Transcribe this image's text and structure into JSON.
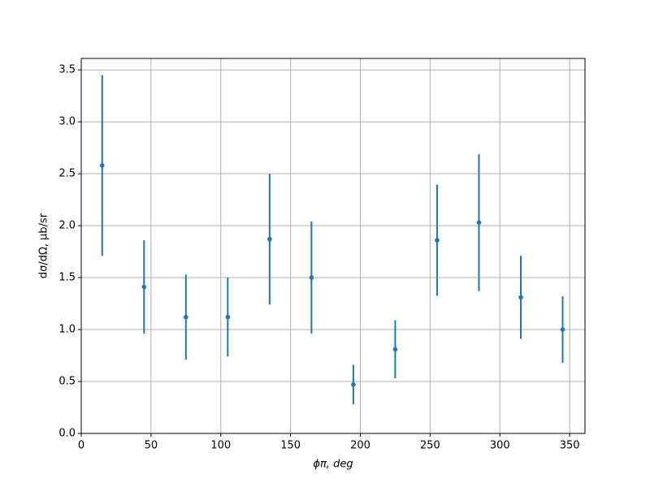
{
  "chart_data": {
    "type": "errorbar",
    "xlabel": "ϕπ, deg",
    "ylabel": "dσ/dΩ, μb/sr",
    "x": [
      15,
      45,
      75,
      105,
      135,
      165,
      195,
      225,
      255,
      285,
      315,
      345
    ],
    "series": [
      {
        "color": "#1f77b4",
        "values": [
          2.58,
          1.41,
          1.12,
          1.12,
          1.87,
          1.5,
          0.47,
          0.81,
          1.86,
          2.03,
          1.31,
          1.0
        ],
        "errors": [
          0.87,
          0.45,
          0.41,
          0.38,
          0.63,
          0.54,
          0.19,
          0.28,
          0.535,
          0.66,
          0.4,
          0.32
        ]
      }
    ],
    "xlim": [
      0,
      361
    ],
    "ylim": [
      0,
      3.61
    ],
    "xticks": [
      0,
      50,
      100,
      150,
      200,
      250,
      300,
      350
    ],
    "yticks": [
      {
        "value": 0,
        "label": "0.0"
      },
      0.5,
      {
        "value": 1,
        "label": "1.0"
      },
      1.5,
      {
        "value": 2,
        "label": "2.0"
      },
      2.5,
      {
        "value": 3,
        "label": "3.0"
      },
      3.5
    ],
    "grid": true
  }
}
